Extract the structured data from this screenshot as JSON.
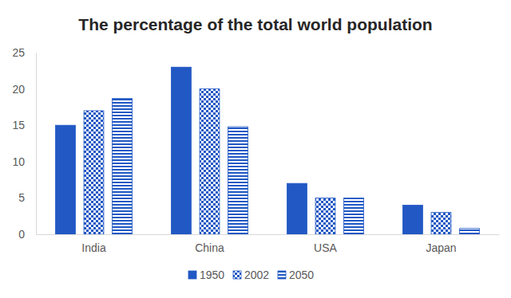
{
  "chart_data": {
    "type": "bar",
    "title": "The percentage of the total world population",
    "categories": [
      "India",
      "China",
      "USA",
      "Japan"
    ],
    "series": [
      {
        "name": "1950",
        "color": "#2158c4",
        "values": [
          15,
          23,
          7,
          4
        ]
      },
      {
        "name": "2002",
        "color": "#2158c4",
        "values": [
          17,
          20,
          5,
          3
        ]
      },
      {
        "name": "2050",
        "color": "#2158c4",
        "values": [
          18.7,
          14.8,
          5,
          0.8
        ]
      }
    ],
    "ylim": [
      0,
      25
    ],
    "yticks": [
      0,
      5,
      10,
      15,
      20,
      25
    ],
    "grid": false,
    "legend": "bottom"
  }
}
